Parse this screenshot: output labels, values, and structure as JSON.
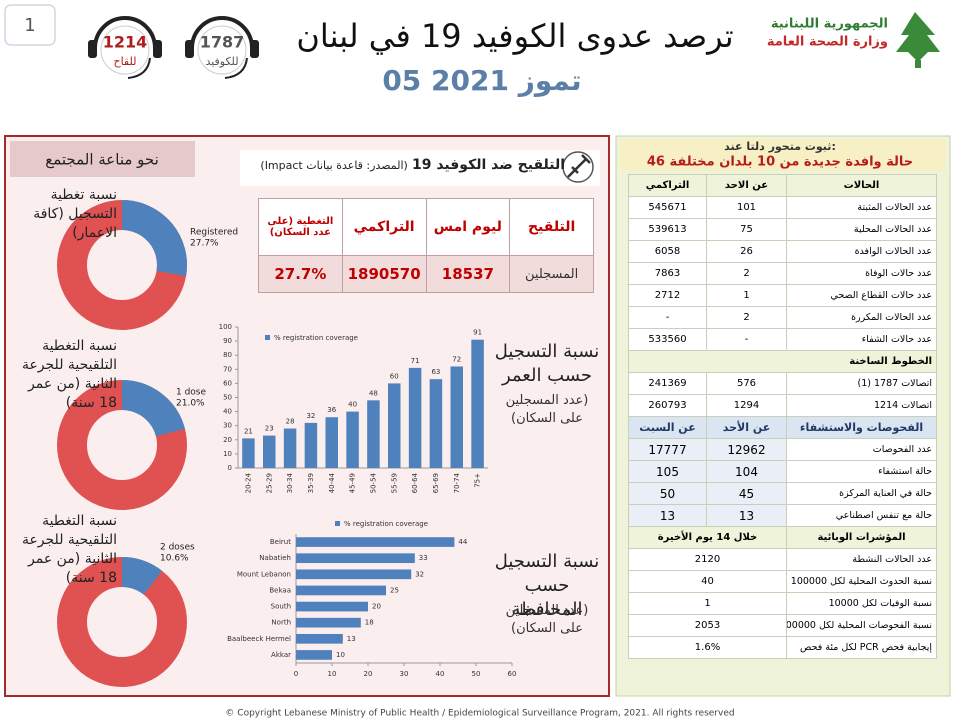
{
  "header": {
    "page_number": 1,
    "title": "ترصد عدوى الكوفيد 19 في لبنان",
    "date": "05 تموز 2021",
    "ministry": [
      "الجمهورية اللبنانية",
      "وزارة الصحة العامة"
    ],
    "hotlines": [
      {
        "number": 1214,
        "label": "للقاح"
      },
      {
        "number": 1787,
        "label": "للكوفيد"
      }
    ]
  },
  "community": {
    "title": "نحو مناعة المجتمع",
    "ring_color": "#4f81bd",
    "rest_color": "#e05252",
    "donuts": [
      {
        "caption": "نسبة تغطية التسجيل (كافة الاعمار)",
        "label": "Registered",
        "value": 27.7,
        "value_label": "27.7%"
      },
      {
        "caption": "نسبة التغطية التلقيحية للجرعة الثانية (من عمر 18 سنة)",
        "label": "1 dose",
        "value": 21.0,
        "value_label": "21.0%"
      },
      {
        "caption": "نسبة التغطية التلقيحية للجرعة الثانية (من عمر 18 سنة)",
        "label": "2 doses",
        "value": 10.6,
        "value_label": "10.6%"
      }
    ]
  },
  "vaccination": {
    "title": "التلقيح ضد الكوفيد 19",
    "source": "(المصدر: قاعدة بيانات Impact)",
    "header": [
      "التلقيح",
      "ليوم امس",
      "التراكمي",
      "التغطية (على عدد السكان)"
    ],
    "row": [
      "المسجلين",
      18537,
      1890570,
      "27.7%"
    ]
  },
  "age_chart": {
    "type": "bar",
    "caption": "نسبة التسجيل حسب العمر",
    "subcaption": "(عدد المسجلين على السكان)",
    "legend": "% registration coverage",
    "color": "#4f81bd",
    "categories": [
      "20-24",
      "25-29",
      "30-34",
      "35-39",
      "40-44",
      "45-49",
      "50-54",
      "55-59",
      "60-64",
      "65-69",
      "70-74",
      "75+"
    ],
    "values": [
      21,
      23,
      28,
      32,
      36,
      40,
      48,
      60,
      71,
      63,
      72,
      91
    ],
    "ylim": [
      0,
      100
    ],
    "yticks": [
      0,
      10,
      20,
      30,
      40,
      50,
      60,
      70,
      80,
      90,
      100
    ]
  },
  "gov_chart": {
    "type": "hbar",
    "caption": "نسبة التسجيل حسب المحافظة",
    "subcaption": "(عدد المسجلين على السكان)",
    "legend": "% registration coverage",
    "color": "#4f81bd",
    "categories": [
      "Beirut",
      "Nabatieh",
      "Mount Lebanon",
      "Bekaa",
      "South",
      "North",
      "Baalbeeck Hermel",
      "Akkar"
    ],
    "values": [
      44,
      33,
      32,
      25,
      20,
      18,
      13,
      10
    ],
    "xlim": [
      0,
      60
    ],
    "xticks": [
      0,
      10,
      20,
      30,
      40,
      50,
      60
    ]
  },
  "status": {
    "alert_title": "ثبوت متحور دلتا عند:",
    "alert_text": "46 حالة وافدة جديدة من 10 بلدان مختلفة",
    "cases": {
      "header": [
        "الحالات",
        "عن الاحد",
        "التراكمي"
      ],
      "rows": [
        [
          "عدد الحالات المثبتة",
          101,
          545671
        ],
        [
          "عدد الحالات المحلية",
          75,
          539613
        ],
        [
          "عدد الحالات الوافدة",
          26,
          6058
        ],
        [
          "عدد حالات الوفاة",
          2,
          7863
        ],
        [
          "عدد حالات القطاع الصحي",
          1,
          2712
        ],
        [
          "عدد الحالات المكررة",
          2,
          "-"
        ],
        [
          "عدد حالات الشفاء",
          "-",
          533560
        ]
      ]
    },
    "hotlines": {
      "header": "الخطوط الساخنة",
      "rows": [
        [
          "اتصالات 1787 (1)",
          576,
          241369
        ],
        [
          "اتصالات 1214",
          1294,
          260793
        ]
      ]
    },
    "tests": {
      "header": [
        "الفحوصات والاستشفاء",
        "عن الأحد",
        "عن السبت"
      ],
      "rows": [
        [
          "عدد الفحوصات",
          12962,
          17777
        ],
        [
          "حالة استشفاء",
          104,
          105
        ],
        [
          "حالة في العناية المركزة",
          45,
          50
        ],
        [
          "حالة مع تنفس اصطناعي",
          13,
          13
        ]
      ]
    },
    "indicators": {
      "header": [
        "المؤشرات الوبائية",
        "خلال 14 يوم الأخيرة"
      ],
      "rows": [
        [
          "عدد الحالات النشطة",
          2120
        ],
        [
          "نسبة الحدوث المحلية لكل 100000",
          40
        ],
        [
          "نسبة الوفيات لكل 10000",
          1
        ],
        [
          "نسبة الفحوصات المحلية لكل 100000",
          2053
        ],
        [
          "إيجابية فحص PCR لكل مئة فحص",
          "1.6%"
        ]
      ]
    }
  },
  "footer": "© Copyright Lebanese Ministry of Public Health / Epidemiological Surveillance Program, 2021. All rights reserved"
}
